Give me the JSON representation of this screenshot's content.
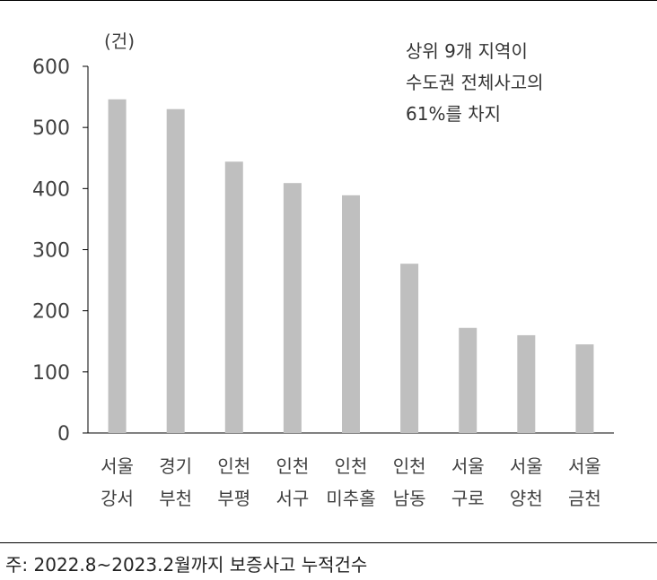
{
  "chart_data": {
    "type": "bar",
    "unit_label": "(건)",
    "categories": [
      [
        "서울",
        "강서"
      ],
      [
        "경기",
        "부천"
      ],
      [
        "인천",
        "부평"
      ],
      [
        "인천",
        "서구"
      ],
      [
        "인천",
        "미추홀"
      ],
      [
        "인천",
        "남동"
      ],
      [
        "서울",
        "구로"
      ],
      [
        "서울",
        "양천"
      ],
      [
        "서울",
        "금천"
      ]
    ],
    "values": [
      546,
      530,
      444,
      409,
      389,
      277,
      172,
      160,
      145
    ],
    "ylim": [
      0,
      600
    ],
    "yticks": [
      0,
      100,
      200,
      300,
      400,
      500,
      600
    ],
    "bar_color": "#bfbfbf",
    "annotation": [
      "상위 9개 지역이",
      "수도권 전체사고의",
      "61%를 차지"
    ]
  },
  "footnote": "주: 2022.8~2023.2월까지 보증사고 누적건수"
}
